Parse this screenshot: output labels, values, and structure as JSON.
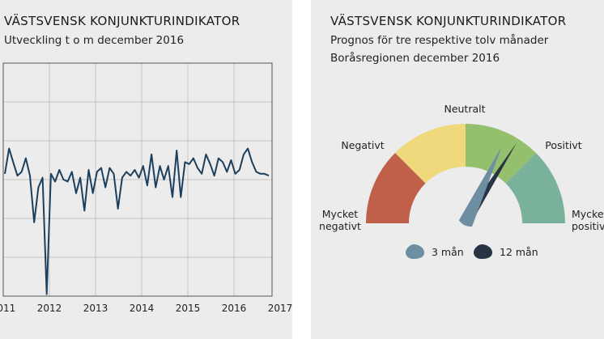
{
  "left": {
    "title": "VÄSTSVENSK KONJUNKTURINDIKATOR",
    "subtitle": "Utveckling t o m december 2016"
  },
  "right": {
    "title": "VÄSTSVENSK KONJUNKTURINDIKATOR",
    "subtitle1": "Prognos för tre respektive tolv månader",
    "subtitle2": "Boråsregionen december 2016"
  },
  "chart_data": [
    {
      "type": "line",
      "title": "VÄSTSVENSK KONJUNKTURINDIKATOR",
      "subtitle": "Utveckling t o m december 2016",
      "x_tick_labels": [
        "2011",
        "2012",
        "2013",
        "2014",
        "2015",
        "2016",
        "2017"
      ],
      "grid": true,
      "series": [
        {
          "color": "#1c3f5e",
          "values": [
            0.15,
            0.8,
            0.45,
            0.1,
            0.2,
            0.55,
            0.1,
            -1.1,
            -0.2,
            0.05,
            -2.95,
            0.15,
            -0.05,
            0.25,
            0.0,
            -0.05,
            0.2,
            -0.35,
            0.05,
            -0.8,
            0.25,
            -0.35,
            0.2,
            0.3,
            -0.2,
            0.3,
            0.15,
            -0.75,
            0.05,
            0.2,
            0.1,
            0.25,
            0.05,
            0.35,
            -0.15,
            0.65,
            -0.2,
            0.35,
            0.0,
            0.35,
            -0.45,
            0.75,
            -0.45,
            0.45,
            0.4,
            0.55,
            0.3,
            0.15,
            0.65,
            0.4,
            0.1,
            0.55,
            0.45,
            0.2,
            0.5,
            0.15,
            0.25,
            0.65,
            0.8,
            0.45,
            0.2,
            0.15,
            0.15,
            0.1
          ]
        }
      ]
    },
    {
      "type": "gauge",
      "title": "VÄSTSVENSK KONJUNKTURINDIKATOR",
      "subtitle": "Prognos för tre respektive tolv månader · Boråsregionen december 2016",
      "segments": [
        {
          "label": "Mycket negativt",
          "color": "#c0604a"
        },
        {
          "label": "Negativt",
          "color": "#efd97c"
        },
        {
          "label": "Neutralt",
          "color": "#94bf6c"
        },
        {
          "label": "Positivt",
          "color": "#7ab19a"
        }
      ],
      "segment_labels": [
        "Negativt",
        "Neutralt",
        "Positivt"
      ],
      "edge_labels": {
        "left": [
          "Mycket",
          "negativt"
        ],
        "right": [
          "Mycket",
          "positivt"
        ]
      },
      "needles": [
        {
          "name": "3 mån",
          "color": "#6e8fa1",
          "value": 0.64
        },
        {
          "name": "12 mån",
          "color": "#283344",
          "value": 0.68
        }
      ]
    }
  ]
}
